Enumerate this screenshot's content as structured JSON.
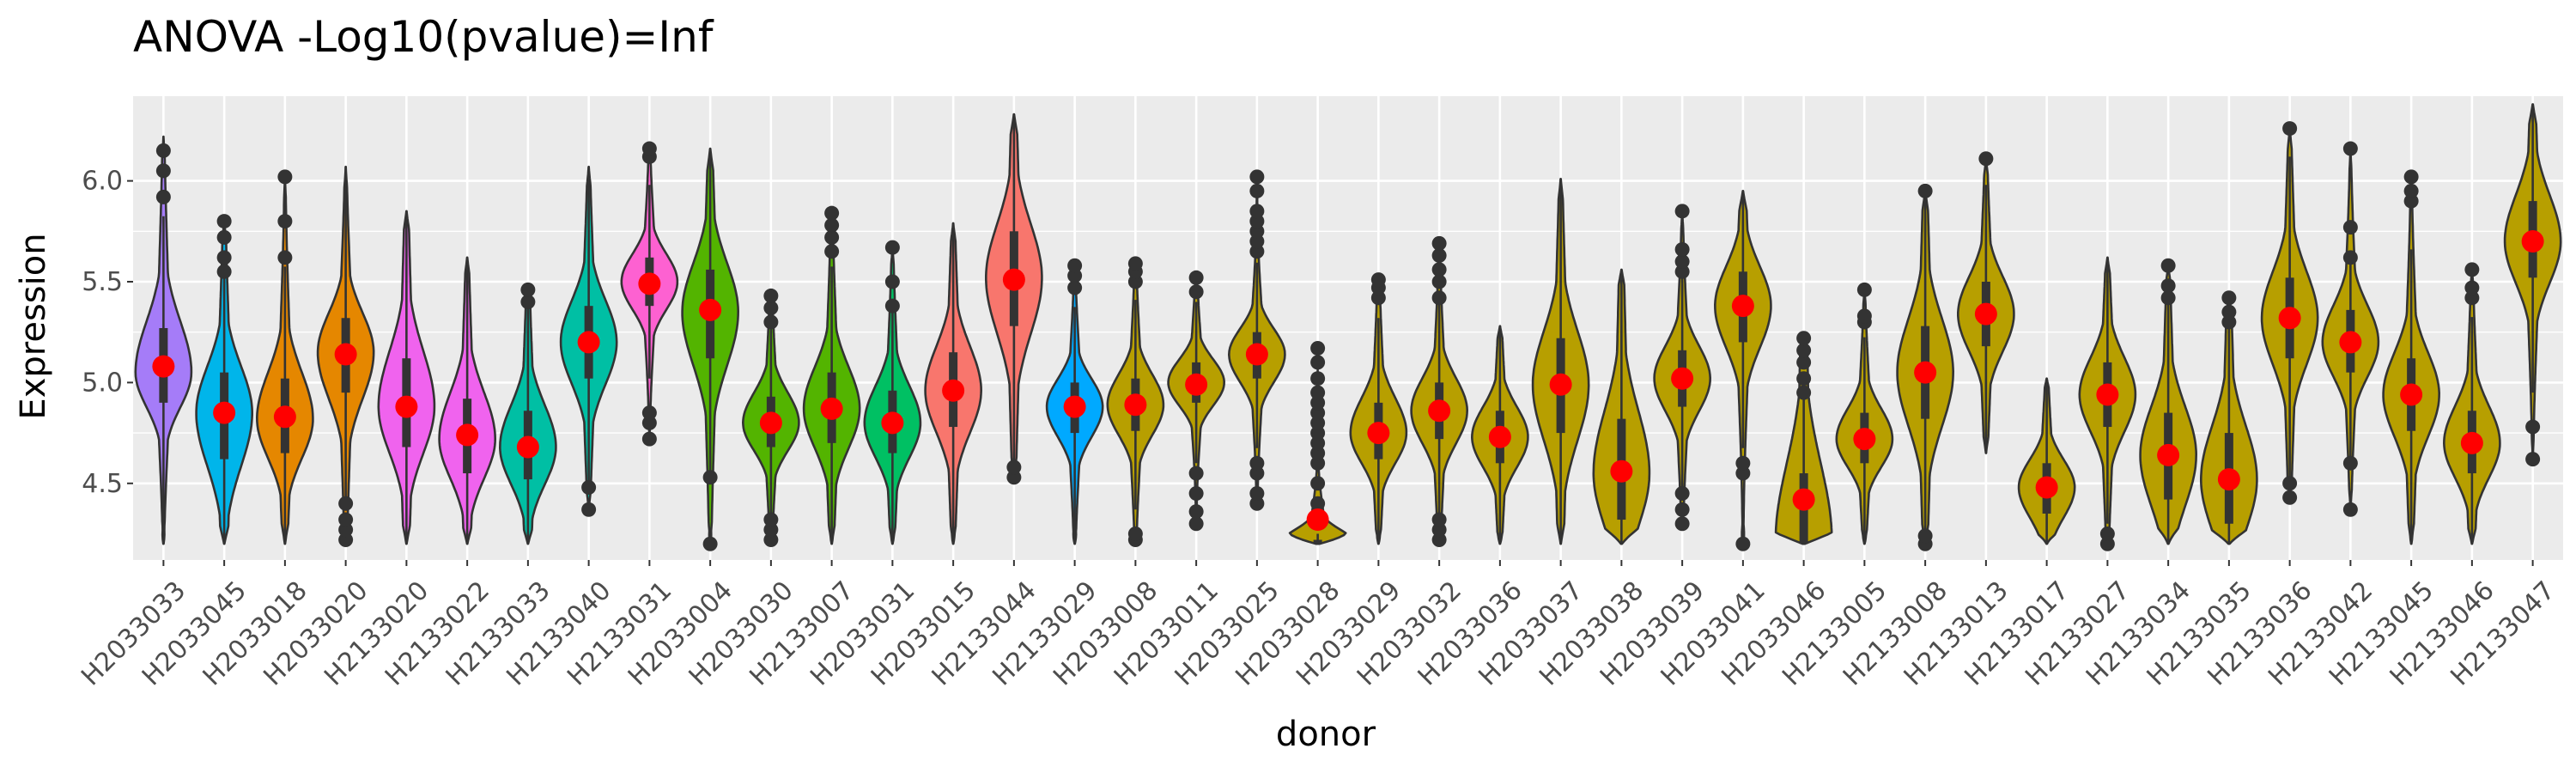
{
  "chart_data": {
    "type": "violin",
    "title": "ANOVA -Log10(pvalue)=Inf",
    "xlabel": "donor",
    "ylabel": "Expression",
    "ylim": [
      4.12,
      6.42
    ],
    "yticks": [
      4.5,
      5.0,
      5.5,
      6.0
    ],
    "ytick_labels": [
      "4.5",
      "5.0",
      "5.5",
      "6.0"
    ],
    "grid": true,
    "legend": "none",
    "mean_marker_color": "#ff0000",
    "categories": [
      "H2033033",
      "H2033045",
      "H2033018",
      "H2033020",
      "H2133020",
      "H2133022",
      "H2133033",
      "H2133040",
      "H2133031",
      "H2033004",
      "H2033030",
      "H2133007",
      "H2033031",
      "H2033015",
      "H2133044",
      "H2133029",
      "H2033008",
      "H2033011",
      "H2033025",
      "H2033028",
      "H2033029",
      "H2033032",
      "H2033036",
      "H2033037",
      "H2033038",
      "H2033039",
      "H2033041",
      "H2033046",
      "H2133005",
      "H2133008",
      "H2133013",
      "H2133017",
      "H2133027",
      "H2133034",
      "H2133035",
      "H2133036",
      "H2133042",
      "H2133045",
      "H2133046",
      "H2133047"
    ],
    "series": [
      {
        "donor": "H2033033",
        "color": "#a57cf8",
        "min": 4.2,
        "max": 6.22,
        "mean": 5.08,
        "q1": 4.9,
        "median": 5.05,
        "q3": 5.27,
        "outliers": [
          5.92,
          6.05,
          6.15
        ]
      },
      {
        "donor": "H2033045",
        "color": "#00b5ea",
        "min": 4.2,
        "max": 5.8,
        "mean": 4.85,
        "q1": 4.62,
        "median": 4.85,
        "q3": 5.05,
        "outliers": [
          5.55,
          5.62,
          5.72,
          5.8
        ]
      },
      {
        "donor": "H2033018",
        "color": "#e58700",
        "min": 4.2,
        "max": 6.02,
        "mean": 4.83,
        "q1": 4.65,
        "median": 4.82,
        "q3": 5.02,
        "outliers": [
          5.62,
          5.8,
          6.02
        ]
      },
      {
        "donor": "H2033020",
        "color": "#e58700",
        "min": 4.2,
        "max": 6.07,
        "mean": 5.14,
        "q1": 4.95,
        "median": 5.15,
        "q3": 5.32,
        "outliers": [
          4.22,
          4.27,
          4.32,
          4.4
        ]
      },
      {
        "donor": "H2133020",
        "color": "#f063ee",
        "min": 4.2,
        "max": 5.85,
        "mean": 4.88,
        "q1": 4.68,
        "median": 4.88,
        "q3": 5.12,
        "outliers": []
      },
      {
        "donor": "H2133022",
        "color": "#f063ee",
        "min": 4.2,
        "max": 5.62,
        "mean": 4.74,
        "q1": 4.55,
        "median": 4.72,
        "q3": 4.92,
        "outliers": []
      },
      {
        "donor": "H2133033",
        "color": "#00bfa4",
        "min": 4.2,
        "max": 5.46,
        "mean": 4.68,
        "q1": 4.52,
        "median": 4.68,
        "q3": 4.86,
        "outliers": [
          5.4,
          5.46
        ]
      },
      {
        "donor": "H2133040",
        "color": "#00bfa4",
        "min": 4.37,
        "max": 6.07,
        "mean": 5.2,
        "q1": 5.02,
        "median": 5.2,
        "q3": 5.38,
        "outliers": [
          4.37,
          4.48
        ]
      },
      {
        "donor": "H2133031",
        "color": "#fd61d1",
        "min": 4.72,
        "max": 6.16,
        "mean": 5.49,
        "q1": 5.38,
        "median": 5.5,
        "q3": 5.62,
        "outliers": [
          4.72,
          4.8,
          4.85,
          6.12,
          6.16
        ]
      },
      {
        "donor": "H2033004",
        "color": "#53b400",
        "min": 4.2,
        "max": 6.16,
        "mean": 5.36,
        "q1": 5.12,
        "median": 5.35,
        "q3": 5.56,
        "outliers": [
          4.2,
          4.53
        ]
      },
      {
        "donor": "H2033030",
        "color": "#53b400",
        "min": 4.2,
        "max": 5.43,
        "mean": 4.8,
        "q1": 4.68,
        "median": 4.8,
        "q3": 4.93,
        "outliers": [
          4.22,
          4.27,
          4.32,
          5.3,
          5.37,
          5.43
        ]
      },
      {
        "donor": "H2133007",
        "color": "#53b400",
        "min": 4.2,
        "max": 5.84,
        "mean": 4.87,
        "q1": 4.7,
        "median": 4.87,
        "q3": 5.05,
        "outliers": [
          5.65,
          5.72,
          5.78,
          5.84
        ]
      },
      {
        "donor": "H2033031",
        "color": "#00c063",
        "min": 4.2,
        "max": 5.67,
        "mean": 4.8,
        "q1": 4.65,
        "median": 4.8,
        "q3": 4.96,
        "outliers": [
          5.38,
          5.5,
          5.67
        ]
      },
      {
        "donor": "H2033015",
        "color": "#f8766d",
        "min": 4.2,
        "max": 5.79,
        "mean": 4.96,
        "q1": 4.78,
        "median": 4.96,
        "q3": 5.15,
        "outliers": []
      },
      {
        "donor": "H2133044",
        "color": "#f8766d",
        "min": 4.53,
        "max": 6.33,
        "mean": 5.51,
        "q1": 5.28,
        "median": 5.52,
        "q3": 5.75,
        "outliers": [
          4.53,
          4.58
        ]
      },
      {
        "donor": "H2133029",
        "color": "#00a9ff",
        "min": 4.2,
        "max": 5.6,
        "mean": 4.88,
        "q1": 4.75,
        "median": 4.88,
        "q3": 5.0,
        "outliers": [
          5.47,
          5.53,
          5.58
        ]
      },
      {
        "donor": "H2033008",
        "color": "#b79f00",
        "min": 4.2,
        "max": 5.59,
        "mean": 4.89,
        "q1": 4.76,
        "median": 4.89,
        "q3": 5.02,
        "outliers": [
          4.22,
          4.25,
          5.5,
          5.55,
          5.59
        ]
      },
      {
        "donor": "H2033011",
        "color": "#b79f00",
        "min": 4.3,
        "max": 5.52,
        "mean": 4.99,
        "q1": 4.9,
        "median": 5.0,
        "q3": 5.1,
        "outliers": [
          4.3,
          4.36,
          4.45,
          4.55,
          5.45,
          5.52
        ]
      },
      {
        "donor": "H2033025",
        "color": "#b79f00",
        "min": 4.4,
        "max": 6.02,
        "mean": 5.14,
        "q1": 5.02,
        "median": 5.14,
        "q3": 5.25,
        "outliers": [
          4.4,
          4.45,
          4.55,
          4.6,
          5.65,
          5.7,
          5.75,
          5.8,
          5.85,
          5.95,
          6.02
        ]
      },
      {
        "donor": "H2033028",
        "color": "#b79f00",
        "min": 4.2,
        "max": 5.17,
        "mean": 4.32,
        "q1": 4.2,
        "median": 4.2,
        "q3": 4.22,
        "outliers": [
          4.4,
          4.5,
          4.6,
          4.65,
          4.7,
          4.75,
          4.8,
          4.85,
          4.9,
          4.95,
          5.02,
          5.1,
          5.17
        ]
      },
      {
        "donor": "H2033029",
        "color": "#b79f00",
        "min": 4.2,
        "max": 5.51,
        "mean": 4.75,
        "q1": 4.62,
        "median": 4.75,
        "q3": 4.9,
        "outliers": [
          5.42,
          5.47,
          5.51
        ]
      },
      {
        "donor": "H2033032",
        "color": "#b79f00",
        "min": 4.2,
        "max": 5.69,
        "mean": 4.86,
        "q1": 4.72,
        "median": 4.86,
        "q3": 5.0,
        "outliers": [
          4.22,
          4.27,
          4.32,
          5.42,
          5.5,
          5.56,
          5.63,
          5.69
        ]
      },
      {
        "donor": "H2033036",
        "color": "#b79f00",
        "min": 4.2,
        "max": 5.28,
        "mean": 4.73,
        "q1": 4.6,
        "median": 4.73,
        "q3": 4.86,
        "outliers": []
      },
      {
        "donor": "H2033037",
        "color": "#b79f00",
        "min": 4.2,
        "max": 6.01,
        "mean": 4.99,
        "q1": 4.75,
        "median": 4.99,
        "q3": 5.22,
        "outliers": []
      },
      {
        "donor": "H2033038",
        "color": "#b79f00",
        "min": 4.2,
        "max": 5.56,
        "mean": 4.56,
        "q1": 4.32,
        "median": 4.55,
        "q3": 4.82,
        "outliers": []
      },
      {
        "donor": "H2033039",
        "color": "#b79f00",
        "min": 4.3,
        "max": 5.85,
        "mean": 5.02,
        "q1": 4.88,
        "median": 5.02,
        "q3": 5.16,
        "outliers": [
          4.3,
          4.37,
          4.45,
          5.55,
          5.6,
          5.66,
          5.85
        ]
      },
      {
        "donor": "H2033041",
        "color": "#b79f00",
        "min": 4.2,
        "max": 5.95,
        "mean": 5.38,
        "q1": 5.2,
        "median": 5.38,
        "q3": 5.55,
        "outliers": [
          4.2,
          4.55,
          4.6
        ]
      },
      {
        "donor": "H2033046",
        "color": "#b79f00",
        "min": 4.2,
        "max": 5.22,
        "mean": 4.42,
        "q1": 4.2,
        "median": 4.22,
        "q3": 4.55,
        "outliers": [
          4.95,
          5.02,
          5.1,
          5.16,
          5.22
        ]
      },
      {
        "donor": "H2133005",
        "color": "#b79f00",
        "min": 4.2,
        "max": 5.46,
        "mean": 4.72,
        "q1": 4.6,
        "median": 4.72,
        "q3": 4.85,
        "outliers": [
          5.3,
          5.33,
          5.46
        ]
      },
      {
        "donor": "H2133008",
        "color": "#b79f00",
        "min": 4.2,
        "max": 5.95,
        "mean": 5.05,
        "q1": 4.82,
        "median": 5.05,
        "q3": 5.28,
        "outliers": [
          4.2,
          4.24,
          5.95
        ]
      },
      {
        "donor": "H2133013",
        "color": "#b79f00",
        "min": 4.65,
        "max": 6.11,
        "mean": 5.34,
        "q1": 5.18,
        "median": 5.34,
        "q3": 5.5,
        "outliers": [
          6.11
        ]
      },
      {
        "donor": "H2133017",
        "color": "#b79f00",
        "min": 4.2,
        "max": 5.02,
        "mean": 4.48,
        "q1": 4.35,
        "median": 4.48,
        "q3": 4.6,
        "outliers": []
      },
      {
        "donor": "H2133027",
        "color": "#b79f00",
        "min": 4.2,
        "max": 5.62,
        "mean": 4.94,
        "q1": 4.78,
        "median": 4.94,
        "q3": 5.1,
        "outliers": [
          4.2,
          4.25
        ]
      },
      {
        "donor": "H2133034",
        "color": "#b79f00",
        "min": 4.2,
        "max": 5.58,
        "mean": 4.64,
        "q1": 4.42,
        "median": 4.64,
        "q3": 4.85,
        "outliers": [
          5.42,
          5.48,
          5.58
        ]
      },
      {
        "donor": "H2133035",
        "color": "#b79f00",
        "min": 4.2,
        "max": 5.42,
        "mean": 4.52,
        "q1": 4.3,
        "median": 4.52,
        "q3": 4.75,
        "outliers": [
          5.3,
          5.35,
          5.42
        ]
      },
      {
        "donor": "H2133036",
        "color": "#b79f00",
        "min": 4.43,
        "max": 6.26,
        "mean": 5.32,
        "q1": 5.12,
        "median": 5.32,
        "q3": 5.52,
        "outliers": [
          4.43,
          4.5,
          6.26
        ]
      },
      {
        "donor": "H2133042",
        "color": "#b79f00",
        "min": 4.37,
        "max": 6.16,
        "mean": 5.2,
        "q1": 5.05,
        "median": 5.2,
        "q3": 5.36,
        "outliers": [
          4.37,
          4.6,
          5.62,
          5.77,
          6.16
        ]
      },
      {
        "donor": "H2133045",
        "color": "#b79f00",
        "min": 4.2,
        "max": 6.02,
        "mean": 4.94,
        "q1": 4.76,
        "median": 4.94,
        "q3": 5.12,
        "outliers": [
          5.9,
          5.95,
          6.02
        ]
      },
      {
        "donor": "H2133046",
        "color": "#b79f00",
        "min": 4.2,
        "max": 5.56,
        "mean": 4.7,
        "q1": 4.55,
        "median": 4.7,
        "q3": 4.86,
        "outliers": [
          5.42,
          5.47,
          5.56
        ]
      },
      {
        "donor": "H2133047",
        "color": "#b79f00",
        "min": 4.62,
        "max": 6.38,
        "mean": 5.7,
        "q1": 5.52,
        "median": 5.7,
        "q3": 5.9,
        "outliers": [
          4.62,
          4.78
        ]
      }
    ]
  }
}
